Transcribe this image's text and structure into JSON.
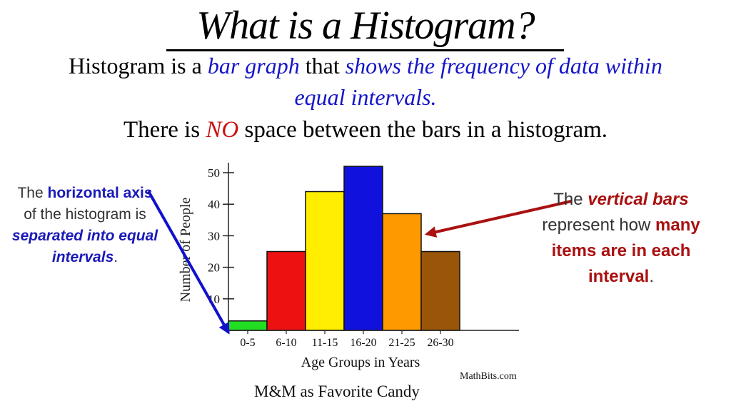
{
  "heading": {
    "title": "What is a Histogram?",
    "line1_a": "Histogram is a ",
    "line1_b": "bar graph",
    "line1_c": " that ",
    "line1_d": "shows the frequency of data within",
    "line2": "equal intervals.",
    "line3_a": "There is ",
    "line3_b": "NO",
    "line3_c": " space between the bars in a histogram."
  },
  "left_note": {
    "p1": "The ",
    "p2": "horizontal axis",
    "p3": " of the histogram is ",
    "p4": "separated into equal intervals",
    "p5": "."
  },
  "right_note": {
    "p1": "The ",
    "p2": "vertical bars",
    "p3": " represent how ",
    "p4": "many items are in each interval",
    "p5": "."
  },
  "credit": "MathBits.com",
  "caption": "M&M as Favorite Candy",
  "colors": {
    "bar_fills": [
      "#22dd22",
      "#ee1111",
      "#ffee00",
      "#1111dd",
      "#ff9900",
      "#99550a"
    ],
    "left_arrow": "#1111cc",
    "right_arrow": "#aa1111"
  },
  "chart_data": {
    "type": "bar",
    "categories": [
      "0-5",
      "6-10",
      "11-15",
      "16-20",
      "21-25",
      "26-30"
    ],
    "values": [
      3,
      25,
      44,
      52,
      37,
      25
    ],
    "xlabel": "Age Groups in Years",
    "ylabel": "Number of People",
    "ylim": [
      0,
      54
    ],
    "yticks": [
      10,
      20,
      30,
      40,
      50
    ],
    "grid": false,
    "legend": "none"
  }
}
